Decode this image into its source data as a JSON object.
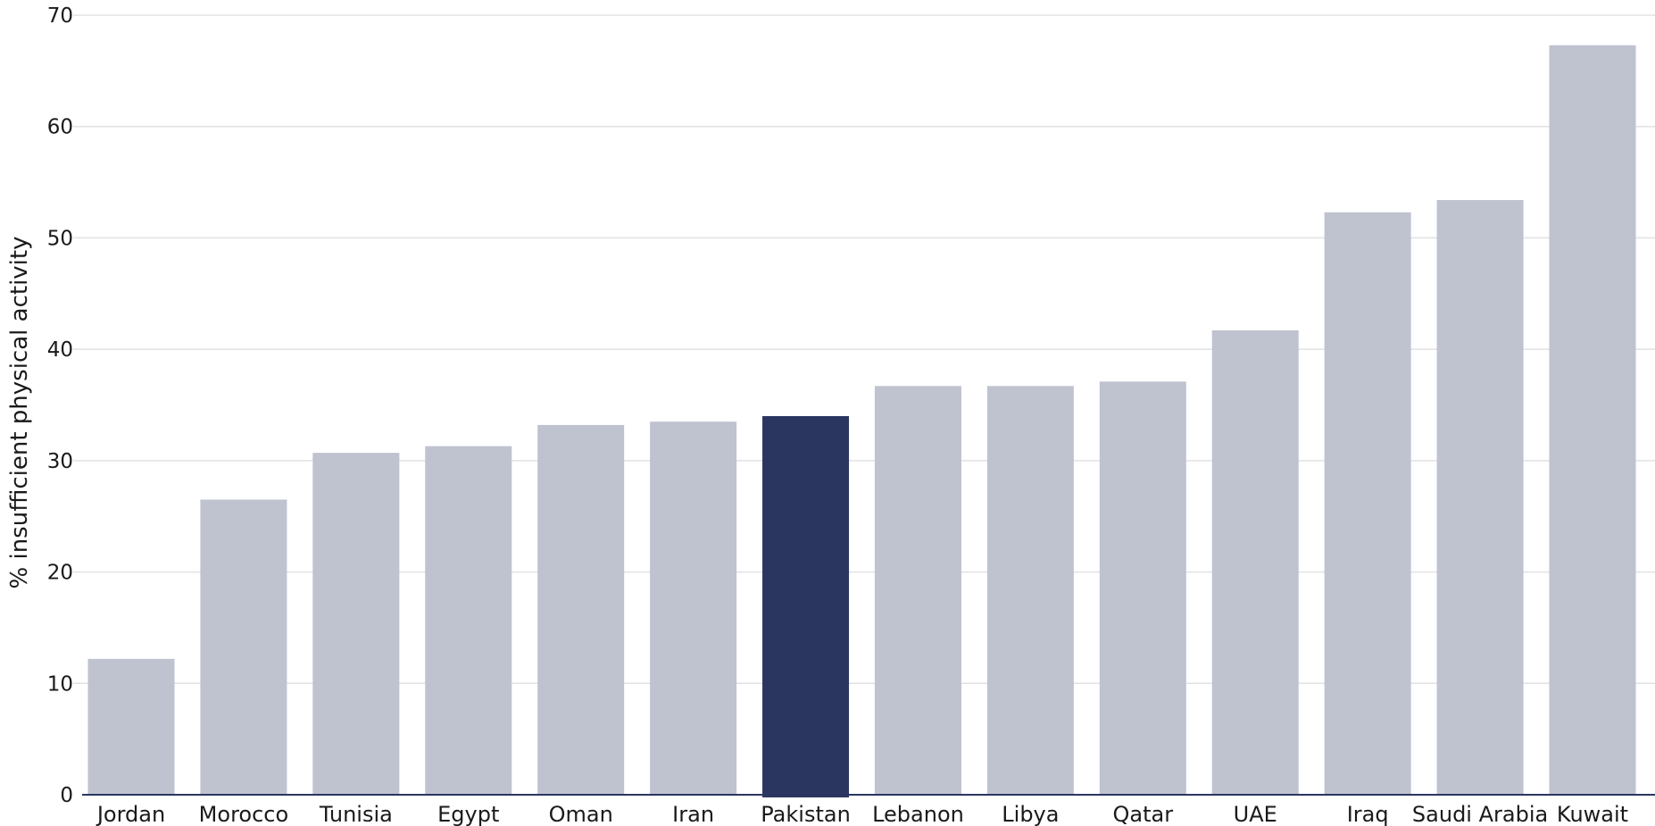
{
  "chart_data": {
    "type": "bar",
    "title": "",
    "xlabel": "",
    "ylabel": "% insufficient physical activity",
    "ylim": [
      0,
      70
    ],
    "yticks": [
      0,
      10,
      20,
      30,
      40,
      50,
      60,
      70
    ],
    "grid": true,
    "categories": [
      "Jordan",
      "Morocco",
      "Tunisia",
      "Egypt",
      "Oman",
      "Iran",
      "Pakistan",
      "Lebanon",
      "Libya",
      "Qatar",
      "UAE",
      "Iraq",
      "Saudi Arabia",
      "Kuwait"
    ],
    "values": [
      12.2,
      26.5,
      30.7,
      31.3,
      33.2,
      33.5,
      34.0,
      36.7,
      36.7,
      37.1,
      41.7,
      52.3,
      53.4,
      67.3
    ],
    "highlight": "Pakistan",
    "colors": {
      "bar": "#bfc2cf",
      "highlight": "#2b3660",
      "grid": "#e2e2e2",
      "text": "#1a1a1a"
    }
  }
}
